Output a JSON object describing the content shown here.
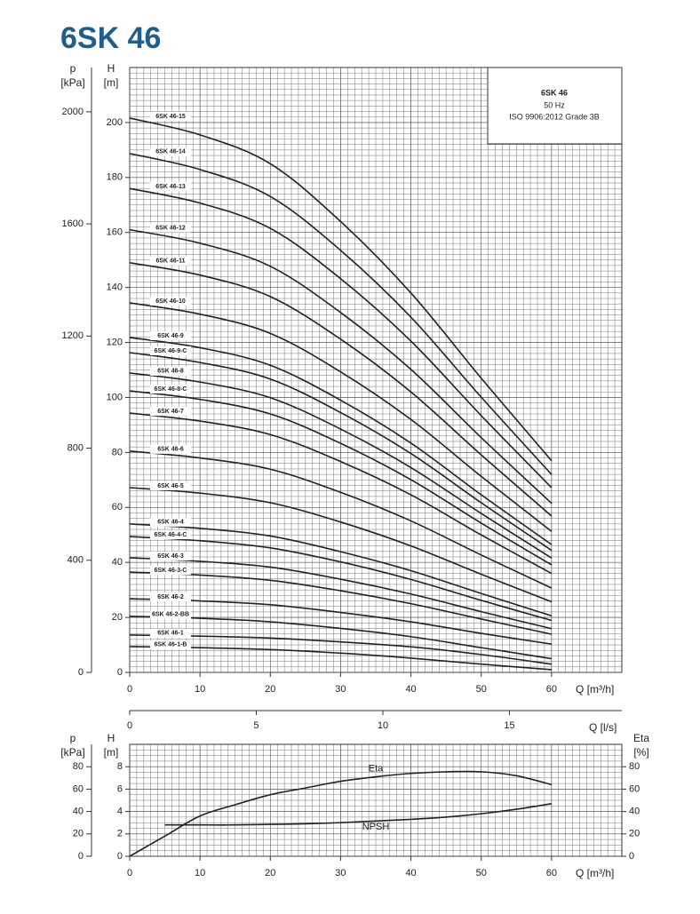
{
  "title": "6SK 46",
  "chart_data": [
    {
      "type": "line",
      "info_box": {
        "title": "6SK 46",
        "lines": [
          "50 Hz",
          "ISO 9906:2012 Grade 3B"
        ]
      },
      "xlabel": "Q [m³/h]",
      "ylabel": "H",
      "yunit": "[m]",
      "x": [
        0,
        10,
        20,
        30,
        40,
        50,
        60
      ],
      "xlim": [
        0,
        70
      ],
      "xticks": [
        0,
        10,
        20,
        30,
        40,
        50,
        60
      ],
      "ylim": [
        0,
        220
      ],
      "yticks": [
        0,
        20,
        40,
        60,
        80,
        100,
        120,
        140,
        160,
        180,
        200
      ],
      "p_axis": {
        "label": "p",
        "unit": "[kPa]",
        "lim": [
          0,
          2158
        ],
        "ticks": [
          0,
          400,
          800,
          1200,
          1600,
          2000
        ]
      },
      "q2_axis": {
        "label": "Q [l/s]",
        "lim": [
          0,
          19.44
        ],
        "ticks": [
          0,
          5,
          10,
          15
        ]
      },
      "grid": true,
      "minor_step_x": 1,
      "minor_step_y": 2,
      "curve_labels": true,
      "series": [
        {
          "name": "6SK 46-15",
          "color": "#222",
          "values": [
            201.6,
            195.5,
            185,
            164,
            138,
            107,
            77
          ]
        },
        {
          "name": "6SK 46-14",
          "color": "#222",
          "values": [
            188.7,
            182.9,
            173.1,
            153.5,
            129.2,
            100.1,
            72
          ]
        },
        {
          "name": "6SK 46-13",
          "color": "#222",
          "values": [
            176,
            170.7,
            161.5,
            143.2,
            120.5,
            93.4,
            67.2
          ]
        },
        {
          "name": "6SK 46-12",
          "color": "#222",
          "values": [
            161,
            156.1,
            147.7,
            130.9,
            110.2,
            85.4,
            61.5
          ]
        },
        {
          "name": "6SK 46-11",
          "color": "#222",
          "values": [
            149,
            144.5,
            136.7,
            121.2,
            102,
            79.1,
            56.9
          ]
        },
        {
          "name": "6SK 46-10",
          "color": "#222",
          "values": [
            134.4,
            130.3,
            123.3,
            109.3,
            92,
            71.3,
            51.3
          ]
        },
        {
          "name": "6SK 46-9",
          "color": "#222",
          "values": [
            121.8,
            118.1,
            111.7,
            99,
            83.4,
            64.6,
            46.5
          ]
        },
        {
          "name": "6SK 46-9-C",
          "color": "#222",
          "values": [
            116.3,
            112.7,
            106.7,
            94.5,
            79.6,
            61.7,
            44.4
          ]
        },
        {
          "name": "6SK 46-8",
          "color": "#222",
          "values": [
            108.9,
            105.6,
            99.9,
            88.5,
            74.5,
            57.8,
            41.6
          ]
        },
        {
          "name": "6SK 46-8-C",
          "color": "#222",
          "values": [
            102.4,
            99.3,
            94,
            83.3,
            70.1,
            54.3,
            39.1
          ]
        },
        {
          "name": "6SK 46-7",
          "color": "#222",
          "values": [
            94.3,
            91.4,
            86.5,
            76.7,
            64.6,
            50,
            36
          ]
        },
        {
          "name": "6SK 46-6",
          "color": "#222",
          "values": [
            80.5,
            78,
            73.9,
            65.5,
            55.1,
            42.7,
            30.7
          ]
        },
        {
          "name": "6SK 46-5",
          "color": "#222",
          "values": [
            67.2,
            65.2,
            61.7,
            54.7,
            46,
            35.7,
            25.7
          ]
        },
        {
          "name": "6SK 46-4",
          "color": "#222",
          "values": [
            54,
            52.4,
            49.6,
            43.9,
            37,
            28.7,
            20.6
          ]
        },
        {
          "name": "6SK 46-4-C",
          "color": "#222",
          "values": [
            49.4,
            47.9,
            45.3,
            40.2,
            33.8,
            26.2,
            18.9
          ]
        },
        {
          "name": "6SK 46-3",
          "color": "#222",
          "values": [
            41.7,
            40.4,
            38.3,
            33.9,
            28.5,
            22.1,
            15.9
          ]
        },
        {
          "name": "6SK 46-3-C",
          "color": "#222",
          "values": [
            36.5,
            35.4,
            33.5,
            29.7,
            25,
            19.4,
            13.9
          ]
        },
        {
          "name": "6SK 46-2",
          "color": "#222",
          "values": [
            26.8,
            26,
            24.6,
            21.8,
            18.4,
            14.2,
            10.3
          ]
        },
        {
          "name": "6SK 46-2-BB",
          "color": "#222",
          "values": [
            20.4,
            19.7,
            18.4,
            16,
            13,
            9,
            5
          ]
        },
        {
          "name": "6SK 46-1",
          "color": "#222",
          "values": [
            13.6,
            13.2,
            12.5,
            11.1,
            9.3,
            6.5,
            3
          ]
        },
        {
          "name": "6SK 46-1-B",
          "color": "#222",
          "values": [
            9.4,
            9,
            8.3,
            7,
            5.2,
            3,
            1
          ]
        }
      ]
    },
    {
      "type": "line",
      "xlabel": "Q [m³/h]",
      "ylabel": "H",
      "yunit": "[m]",
      "y2label": "Eta",
      "y2unit": "[%]",
      "x": [
        0,
        5,
        10,
        15,
        20,
        25,
        30,
        35,
        40,
        45,
        50,
        55,
        60
      ],
      "xlim": [
        0,
        70
      ],
      "xticks": [
        0,
        10,
        20,
        30,
        40,
        50,
        60
      ],
      "ylim": [
        0,
        10
      ],
      "yticks": [
        0,
        2,
        4,
        6,
        8
      ],
      "y2lim": [
        0,
        100
      ],
      "y2ticks": [
        0,
        20,
        40,
        60,
        80
      ],
      "p_axis": {
        "label": "p",
        "unit": "[kPa]",
        "lim": [
          0,
          100
        ],
        "ticks": [
          0,
          20,
          40,
          60,
          80
        ]
      },
      "grid": true,
      "minor_step_x": 1,
      "minor_step_y": 0.5,
      "curve_labels": false,
      "series": [
        {
          "name": "Eta",
          "axis": "y2",
          "color": "#222",
          "values": [
            0,
            18,
            36,
            46,
            55,
            61,
            67,
            71,
            74,
            75.5,
            75.5,
            72,
            64
          ]
        },
        {
          "name": "NPSH",
          "color": "#222",
          "values": [
            null,
            2.8,
            2.8,
            2.8,
            2.85,
            2.9,
            3.0,
            3.15,
            3.3,
            3.5,
            3.8,
            4.2,
            4.7
          ]
        }
      ]
    }
  ]
}
